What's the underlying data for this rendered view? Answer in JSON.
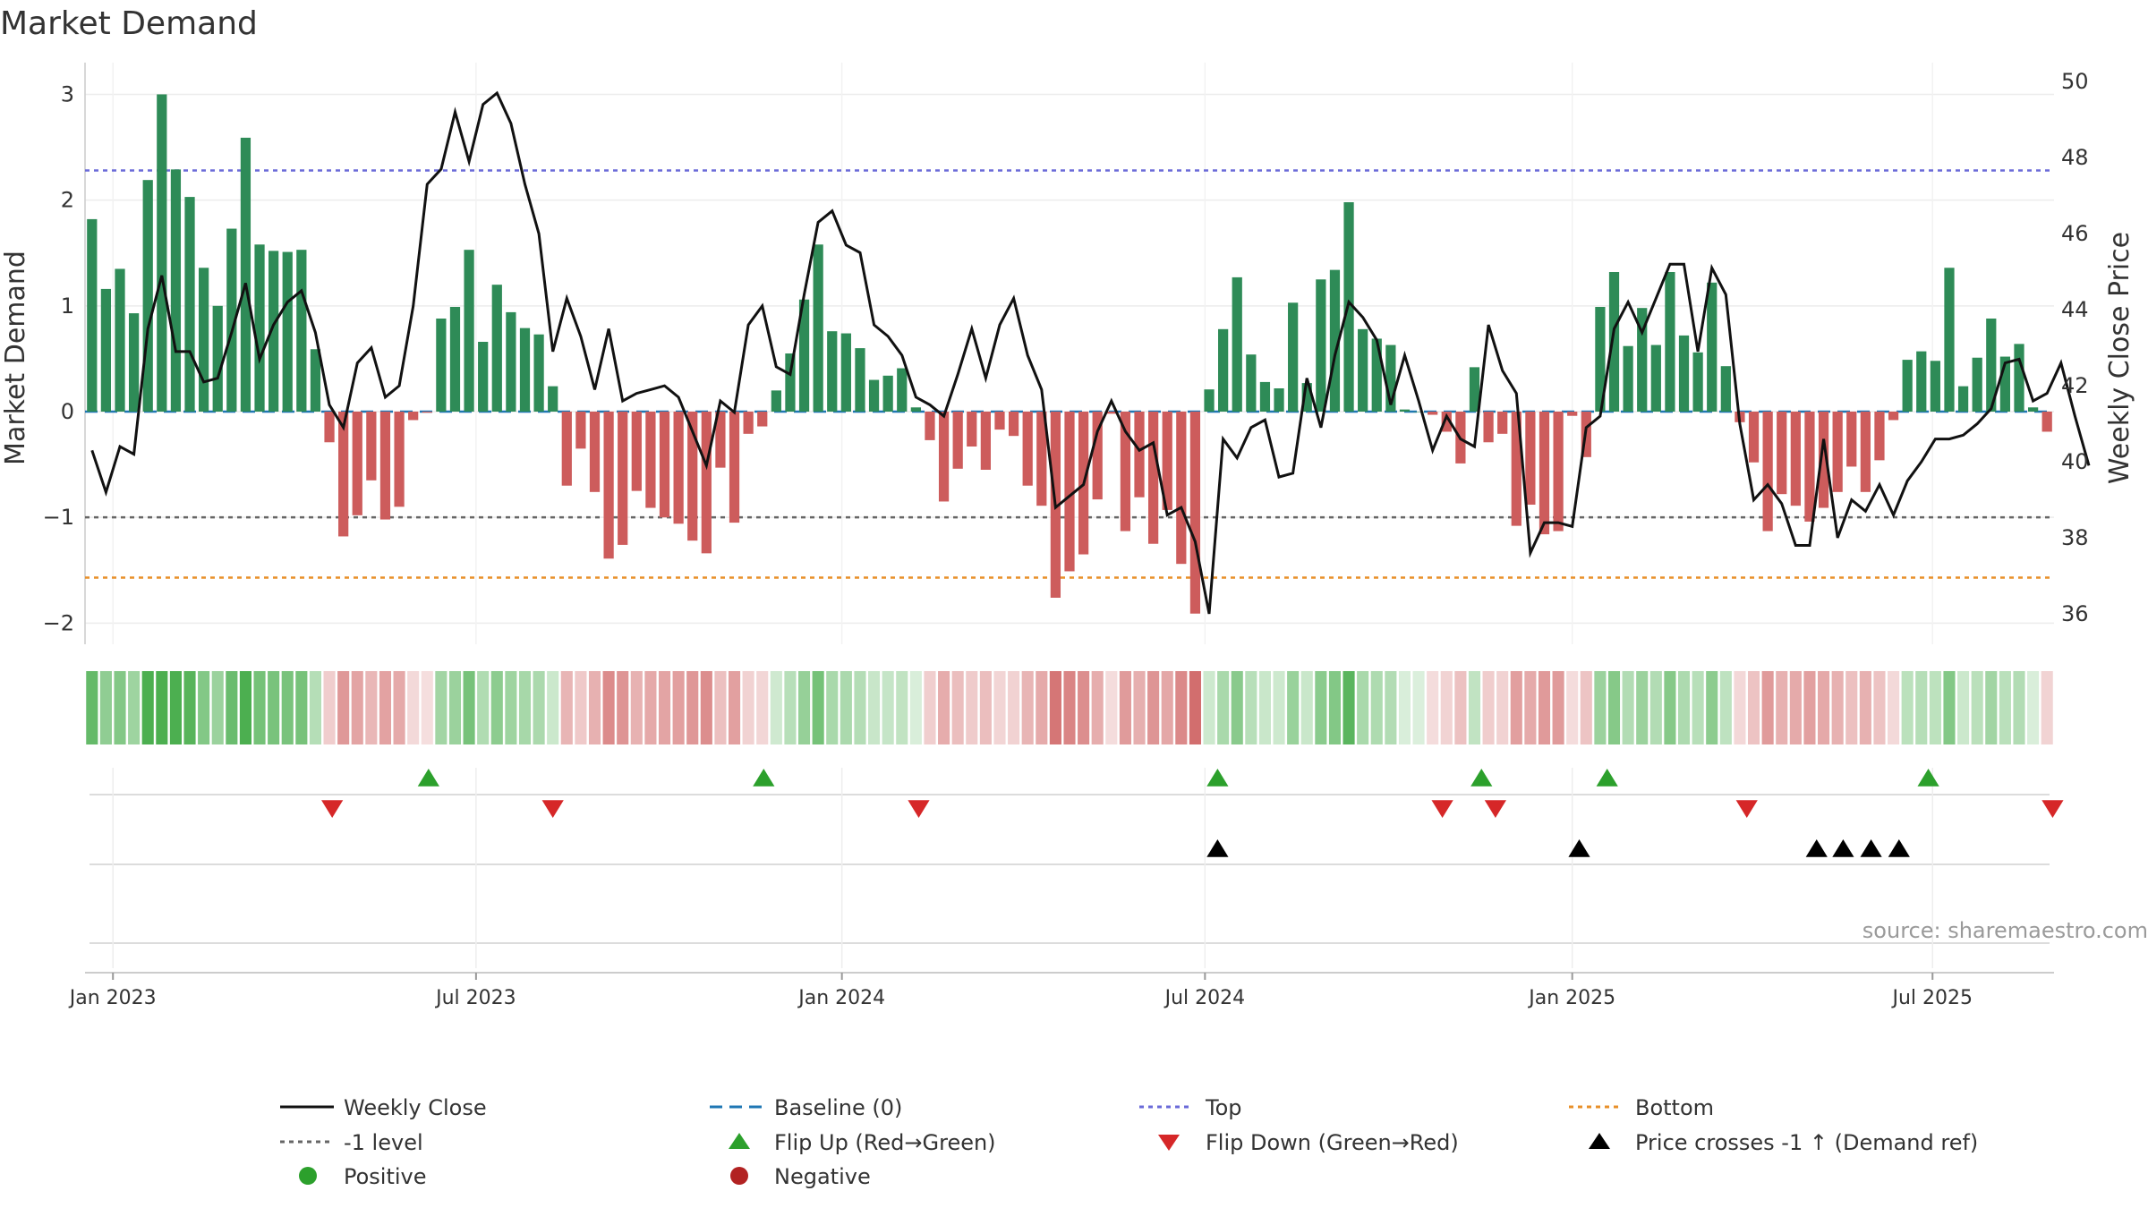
{
  "chart_data": {
    "type": "bar",
    "title": "Market Demand",
    "ylabel_left": "Market Demand",
    "ylabel_right": "Weekly Close Price",
    "source": "source: sharemaestro.com",
    "yleft_ticks": [
      "3",
      "2",
      "1",
      "0",
      "−1",
      "−2"
    ],
    "yright_ticks": [
      "50",
      "48",
      "46",
      "44",
      "42",
      "40",
      "38",
      "36"
    ],
    "ylim_left": [
      -2.2,
      3.3
    ],
    "ylim_right": [
      35.2,
      50.5
    ],
    "x_ticks": [
      {
        "label": "Jan 2023",
        "week": 1.5
      },
      {
        "label": "Jul 2023",
        "week": 27.5
      },
      {
        "label": "Jan 2024",
        "week": 53.7
      },
      {
        "label": "Jul 2024",
        "week": 79.7
      },
      {
        "label": "Jan 2025",
        "week": 106
      },
      {
        "label": "Jul 2025",
        "week": 131.8
      }
    ],
    "reference_lines": {
      "baseline": 0,
      "top": 2.28,
      "bottom": -1.57,
      "minus_one": -1.0
    },
    "demand": [
      1.82,
      1.16,
      1.35,
      0.93,
      2.19,
      3.0,
      2.29,
      2.03,
      1.36,
      1.0,
      1.73,
      2.59,
      1.58,
      1.52,
      1.51,
      1.53,
      0.59,
      -0.29,
      -1.18,
      -0.98,
      -0.65,
      -1.02,
      -0.9,
      -0.08,
      -0.01,
      0.88,
      0.99,
      1.53,
      0.66,
      1.2,
      0.94,
      0.79,
      0.73,
      0.24,
      -0.7,
      -0.35,
      -0.76,
      -1.39,
      -1.26,
      -0.75,
      -0.91,
      -1.0,
      -1.06,
      -1.22,
      -1.34,
      -0.53,
      -1.05,
      -0.21,
      -0.14,
      0.2,
      0.55,
      1.06,
      1.58,
      0.76,
      0.74,
      0.6,
      0.3,
      0.34,
      0.41,
      0.04,
      -0.27,
      -0.85,
      -0.54,
      -0.33,
      -0.55,
      -0.17,
      -0.23,
      -0.7,
      -0.89,
      -1.76,
      -1.51,
      -1.35,
      -0.83,
      -0.02,
      -1.13,
      -0.81,
      -1.25,
      -0.93,
      -1.44,
      -1.91,
      0.21,
      0.78,
      1.27,
      0.54,
      0.28,
      0.22,
      1.03,
      0.27,
      1.25,
      1.34,
      1.98,
      0.78,
      0.69,
      0.63,
      0.02,
      0.0,
      -0.03,
      -0.19,
      -0.49,
      0.42,
      -0.29,
      -0.21,
      -1.08,
      -0.88,
      -1.16,
      -1.13,
      -0.04,
      -0.43,
      0.99,
      1.32,
      0.62,
      0.98,
      0.63,
      1.32,
      0.72,
      0.56,
      1.22,
      0.43,
      -0.1,
      -0.48,
      -1.13,
      -0.78,
      -0.89,
      -1.04,
      -0.91,
      -0.76,
      -0.52,
      -0.76,
      -0.46,
      -0.08,
      0.49,
      0.57,
      0.48,
      1.36,
      0.24,
      0.51,
      0.88,
      0.52,
      0.64,
      0.04,
      -0.19
    ],
    "weekly_close": [
      40.3,
      39.2,
      40.4,
      40.2,
      43.5,
      44.9,
      42.9,
      42.9,
      42.1,
      42.2,
      43.4,
      44.7,
      42.7,
      43.6,
      44.2,
      44.5,
      43.4,
      41.5,
      40.9,
      42.6,
      43.0,
      41.7,
      42.0,
      44.1,
      47.3,
      47.7,
      49.2,
      47.9,
      49.4,
      49.7,
      48.9,
      47.3,
      46.0,
      42.9,
      44.3,
      43.3,
      41.9,
      43.5,
      41.6,
      41.8,
      41.9,
      42.0,
      41.7,
      40.8,
      39.9,
      41.6,
      41.3,
      43.6,
      44.1,
      42.5,
      42.3,
      44.4,
      46.3,
      46.6,
      45.7,
      45.5,
      43.6,
      43.3,
      42.8,
      41.7,
      41.5,
      41.2,
      42.3,
      43.5,
      42.2,
      43.6,
      44.3,
      42.8,
      41.9,
      38.8,
      39.1,
      39.4,
      40.8,
      41.6,
      40.8,
      40.3,
      40.5,
      38.6,
      38.8,
      37.9,
      36.0,
      40.6,
      40.1,
      40.9,
      41.1,
      39.6,
      39.7,
      42.2,
      40.9,
      42.8,
      44.2,
      43.8,
      43.2,
      41.5,
      42.8,
      41.6,
      40.3,
      41.2,
      40.6,
      40.4,
      43.6,
      42.4,
      41.8,
      37.6,
      38.4,
      38.4,
      38.3,
      40.9,
      41.2,
      43.5,
      44.2,
      43.4,
      44.3,
      45.2,
      45.2,
      42.9,
      45.1,
      44.4,
      41.0,
      39.0,
      39.4,
      38.9,
      37.8,
      37.8,
      40.6,
      38.0,
      39.0,
      38.7,
      39.4,
      38.6,
      39.5,
      40.0,
      40.6,
      40.6,
      40.7,
      41.0,
      41.4,
      42.6,
      42.7,
      41.6,
      41.8,
      42.6,
      41.2,
      39.9
    ],
    "flip_up_weeks": [
      24.1,
      48.1,
      80.6,
      99.5,
      108.5,
      131.5
    ],
    "flip_down_weeks": [
      17.2,
      33.0,
      59.2,
      96.7,
      100.5,
      118.5,
      140.4
    ],
    "price_crosses_weeks": [
      80.6,
      106.5,
      123.5,
      125.4,
      127.4,
      129.4
    ]
  },
  "legend": {
    "weekly_close": "Weekly Close",
    "baseline": "Baseline (0)",
    "top": "Top",
    "bottom": "Bottom",
    "minus_one": "-1 level",
    "flip_up": "Flip Up (Red→Green)",
    "flip_down": "Flip Down (Green→Red)",
    "price_crosses": "Price crosses -1 ↑ (Demand ref)",
    "positive": "Positive",
    "negative": "Negative"
  },
  "colors": {
    "positive": "#2e8b57",
    "negative": "#cd5c5c",
    "close": "#111111",
    "baseline": "#1f77b4",
    "top": "#6a6ad8",
    "bottom": "#e8902a",
    "minus_one": "#666666",
    "flip_up": "#2ca02c",
    "flip_down": "#d62728",
    "price_cross": "#000000",
    "legend_positive": "#2ca02c",
    "legend_negative": "#b22222",
    "heat_green": [
      76,
      175,
      80
    ],
    "heat_red": [
      205,
      92,
      92
    ]
  }
}
